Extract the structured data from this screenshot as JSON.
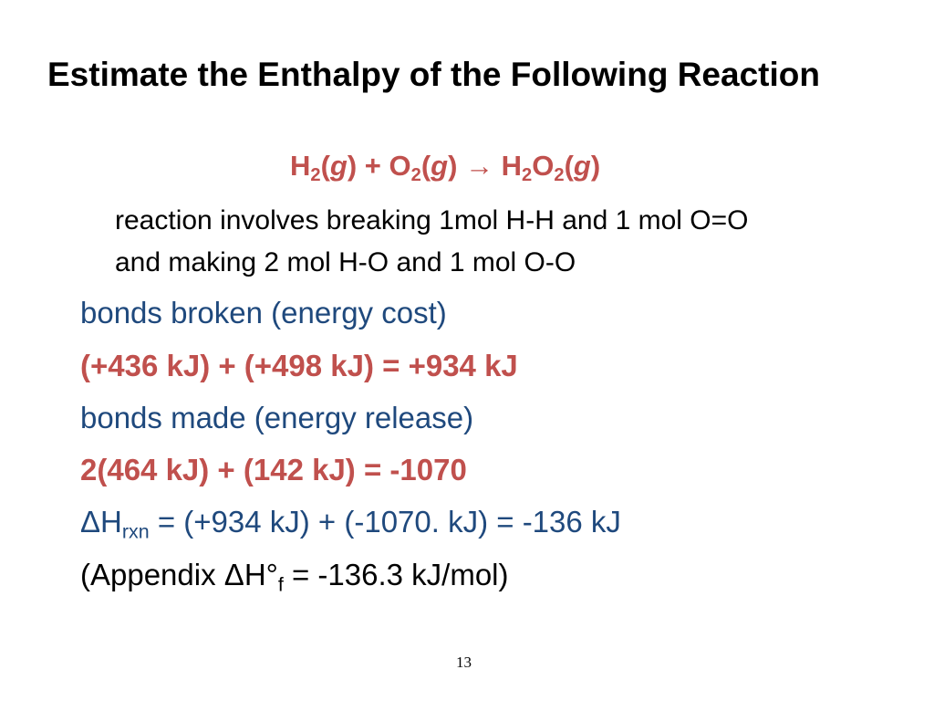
{
  "title": "Estimate the Enthalpy of the Following Reaction",
  "reaction": {
    "h": "H",
    "two_a": "2",
    "g_a": "g",
    "plus": " + O",
    "two_b": "2",
    "g_b": "g",
    "arrow": "→",
    "h2": " H",
    "two_c": "2",
    "o": "O",
    "two_d": "2",
    "g_c": "g"
  },
  "note": {
    "line1": "reaction involves breaking 1mol H-H and 1 mol O=O",
    "line2": "and making 2 mol H-O and 1 mol O-O"
  },
  "broken_label": "bonds broken (energy cost)",
  "broken_calc": "(+436 kJ) + (+498 kJ) = +934 kJ",
  "made_label": "bonds made (energy release)",
  "made_calc": "2(464 kJ) + (142 kJ) = -1070",
  "delta_h": {
    "delta": "Δ",
    "h": "H",
    "sub": "rxn",
    "rest": " = (+934 kJ) + (-1070. kJ) = -136 kJ"
  },
  "appendix": {
    "prefix": "(Appendix ",
    "delta": "Δ",
    "h": "H°",
    "sub": "f",
    "rest": " = -136.3 kJ/mol)"
  },
  "page_number": "13"
}
